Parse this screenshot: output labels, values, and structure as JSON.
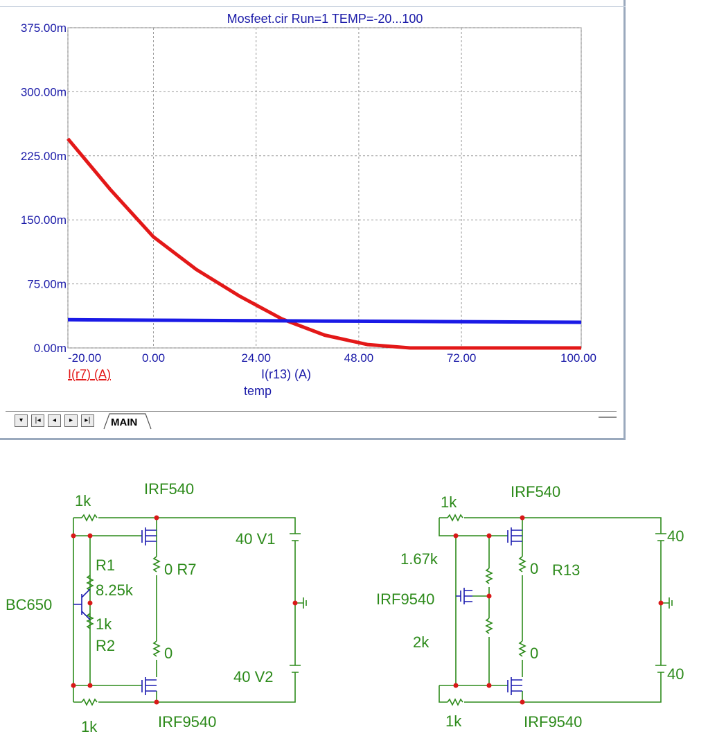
{
  "window": {
    "title": "Mosfeet.cir Run=1 TEMP=-20...100",
    "tab_label": "MAIN",
    "nav_buttons": [
      "▾",
      "|◂",
      "◂",
      "▸",
      "▸|"
    ]
  },
  "chart_data": {
    "type": "line",
    "title": "Mosfeet.cir Run=1 TEMP=-20...100",
    "xlabel": "temp",
    "ylabel": "",
    "xlim": [
      -20,
      100
    ],
    "ylim": [
      0,
      0.375
    ],
    "x_ticks": [
      "-20.00",
      "0.00",
      "24.00",
      "48.00",
      "72.00",
      "100.00"
    ],
    "x_tick_values": [
      -20,
      0,
      24,
      48,
      72,
      100
    ],
    "y_ticks": [
      "375.00m",
      "300.00m",
      "225.00m",
      "150.00m",
      "75.00m",
      "0.00m"
    ],
    "y_tick_values": [
      0.375,
      0.3,
      0.225,
      0.15,
      0.075,
      0
    ],
    "grid": true,
    "series": [
      {
        "name": "I(r7) (A)",
        "color": "#e31818",
        "x": [
          -20,
          -10,
          0,
          10,
          20,
          30,
          40,
          50,
          60,
          70,
          80,
          90,
          100
        ],
        "y": [
          0.245,
          0.185,
          0.13,
          0.092,
          0.061,
          0.034,
          0.015,
          0.004,
          0.0,
          0.0,
          0.0,
          0.0,
          0.0
        ]
      },
      {
        "name": "I(r13) (A)",
        "color": "#1a1ae6",
        "x": [
          -20,
          0,
          20,
          40,
          60,
          80,
          100
        ],
        "y": [
          0.033,
          0.0325,
          0.032,
          0.0315,
          0.031,
          0.0305,
          0.03
        ]
      }
    ]
  },
  "schematics": {
    "left": {
      "labels": [
        "1k",
        "IRF540",
        "40  V1",
        "R1",
        "8.25k",
        "0  R7",
        "BC650",
        "1k",
        "R2",
        "0",
        "40  V2",
        "1k",
        "IRF9540"
      ]
    },
    "right": {
      "labels": [
        "1k",
        "IRF540",
        "40",
        "1.67k",
        "0",
        "R13",
        "IRF9540",
        "2k",
        "0",
        "40",
        "1k",
        "IRF9540"
      ]
    }
  }
}
